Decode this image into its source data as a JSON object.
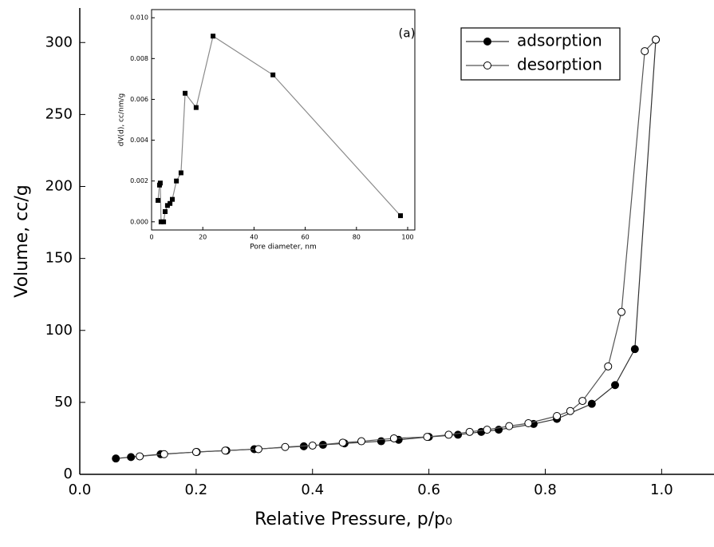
{
  "chart_data": [
    {
      "type": "line",
      "xlabel": "Relative Pressure, p/p₀",
      "ylabel": "Volume, cc/g",
      "annotation": "(a)",
      "xlim": [
        0,
        1.09
      ],
      "ylim": [
        0,
        324
      ],
      "xticks": [
        {
          "value": 0,
          "label": "0.0"
        },
        0.2,
        0.4,
        0.6,
        0.8,
        {
          "value": 1,
          "label": "1.0"
        }
      ],
      "yticks": [
        0,
        50,
        100,
        150,
        200,
        250,
        300
      ],
      "legend": "upper right",
      "series": [
        {
          "name": "adsorption",
          "color": "#333333",
          "marker_face": "#000000",
          "x": [
            0.062,
            0.088,
            0.139,
            0.201,
            0.252,
            0.3,
            0.385,
            0.418,
            0.455,
            0.518,
            0.548,
            0.6,
            0.65,
            0.69,
            0.72,
            0.78,
            0.82,
            0.88,
            0.92,
            0.954,
            0.99
          ],
          "values": [
            11,
            12,
            14,
            15.5,
            16.5,
            17.5,
            19.5,
            20.5,
            21.5,
            23,
            24,
            26,
            27.5,
            29.5,
            31,
            35,
            38.5,
            49,
            62,
            87,
            302
          ]
        },
        {
          "name": "desorption",
          "color": "#555555",
          "marker_face": "#ffffff",
          "x": [
            0.99,
            0.971,
            0.931,
            0.908,
            0.864,
            0.843,
            0.82,
            0.771,
            0.738,
            0.7,
            0.67,
            0.634,
            0.597,
            0.54,
            0.484,
            0.452,
            0.4,
            0.353,
            0.307,
            0.25,
            0.2,
            0.145,
            0.103
          ],
          "values": [
            302,
            294,
            112.8,
            75,
            51,
            44,
            40.5,
            35.5,
            33.5,
            31,
            29.5,
            27.5,
            26,
            25,
            23,
            22,
            20,
            19,
            17.5,
            16.5,
            15.5,
            14,
            12.5
          ]
        }
      ]
    },
    {
      "type": "line",
      "xlabel": "Pore diameter, nm",
      "ylabel": "dV(d), cc/nm/g",
      "xlim": [
        0,
        102.8
      ],
      "ylim": [
        -0.0004,
        0.0104
      ],
      "xticks": [
        0,
        20,
        40,
        60,
        80,
        100
      ],
      "yticks": [
        {
          "value": 0,
          "label": "0.000"
        },
        {
          "value": 0.002,
          "label": "0.002"
        },
        {
          "value": 0.004,
          "label": "0.004"
        },
        {
          "value": 0.006,
          "label": "0.006"
        },
        {
          "value": 0.008,
          "label": "0.008"
        },
        {
          "value": 0.01,
          "label": "0.010"
        }
      ],
      "series": [
        {
          "color": "#8a8a8a",
          "marker_face": "#000000",
          "x": [
            2.5,
            3.1,
            3.4,
            3.7,
            4.7,
            5.3,
            6.2,
            7.2,
            8.1,
            9.7,
            11.5,
            13.1,
            17.4,
            24.0,
            47.4,
            97.2
          ],
          "values": [
            0.00105,
            0.0018,
            0.0019,
            0,
            0,
            0.0005,
            0.0008,
            0.0009,
            0.0011,
            0.002,
            0.0024,
            0.0063,
            0.0056,
            0.0091,
            0.0072,
            0.0003
          ]
        }
      ]
    }
  ]
}
